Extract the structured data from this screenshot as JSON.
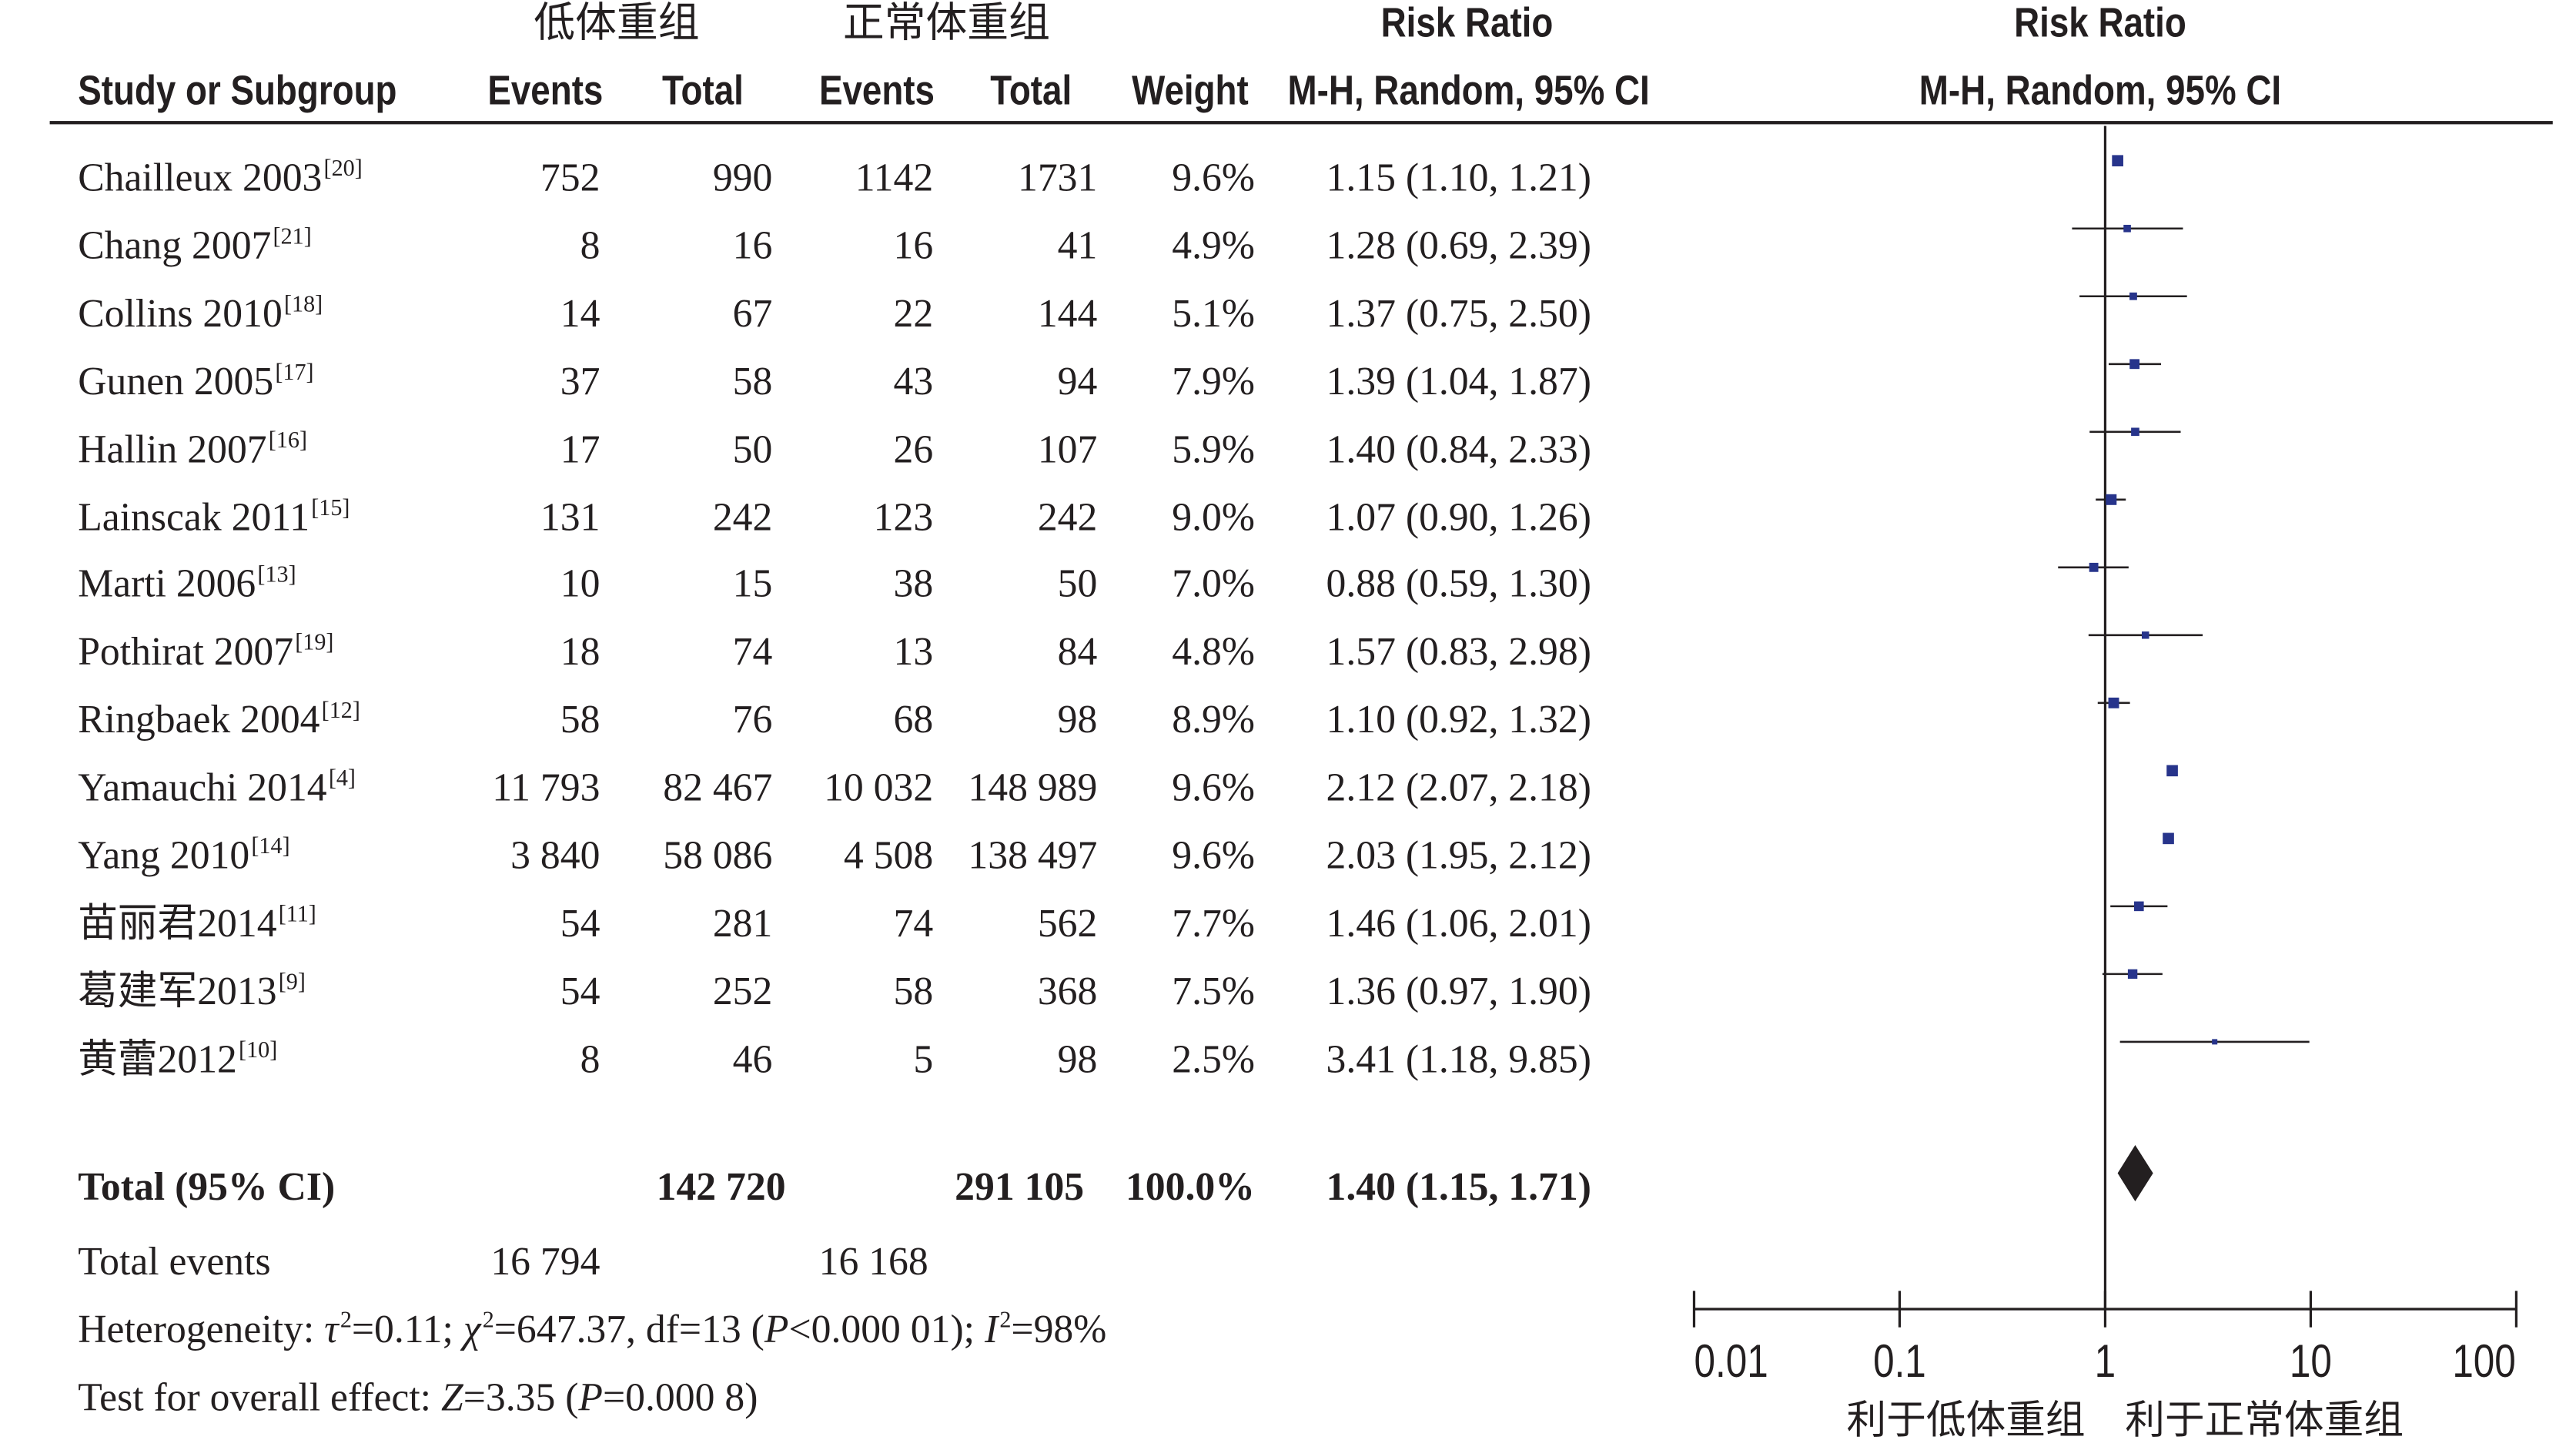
{
  "header": {
    "group_1": "低体重组",
    "group_2": "正常体重组",
    "risk_ratio_table": "Risk Ratio",
    "risk_ratio_plot": "Risk Ratio",
    "study": "Study or Subgroup",
    "events_1": "Events",
    "total_1": "Total",
    "events_2": "Events",
    "total_2": "Total",
    "weight": "Weight",
    "method_table": "M-H, Random, 95% CI",
    "method_plot": "M-H, Random, 95% CI"
  },
  "chart_data": {
    "type": "scatter",
    "x_scale": "log",
    "xlim": [
      0.01,
      100
    ],
    "xticks": [
      "0.01",
      "0.1",
      "1",
      "10",
      "100"
    ],
    "reference_line": 1,
    "xlabel_left": "利于低体重组",
    "xlabel_right": "利于正常体重组",
    "marker_color": "#27348b",
    "studies": [
      {
        "study": "Chailleux 2003",
        "ref": "[20]",
        "events_1": "752",
        "total_1": "990",
        "events_2": "1142",
        "total_2": "1731",
        "weight": "9.6%",
        "ci_text": "1.15 (1.10, 1.21)",
        "rr": 1.15,
        "lo": 1.1,
        "hi": 1.21,
        "w": 9.6
      },
      {
        "study": "Chang 2007",
        "ref": "[21]",
        "events_1": "8",
        "total_1": "16",
        "events_2": "16",
        "total_2": "41",
        "weight": "4.9%",
        "ci_text": "1.28 (0.69, 2.39)",
        "rr": 1.28,
        "lo": 0.69,
        "hi": 2.39,
        "w": 4.9
      },
      {
        "study": "Collins 2010",
        "ref": "[18]",
        "events_1": "14",
        "total_1": "67",
        "events_2": "22",
        "total_2": "144",
        "weight": "5.1%",
        "ci_text": "1.37 (0.75, 2.50)",
        "rr": 1.37,
        "lo": 0.75,
        "hi": 2.5,
        "w": 5.1
      },
      {
        "study": "Gunen 2005",
        "ref": "[17]",
        "events_1": "37",
        "total_1": "58",
        "events_2": "43",
        "total_2": "94",
        "weight": "7.9%",
        "ci_text": "1.39 (1.04, 1.87)",
        "rr": 1.39,
        "lo": 1.04,
        "hi": 1.87,
        "w": 7.9
      },
      {
        "study": "Hallin 2007",
        "ref": "[16]",
        "events_1": "17",
        "total_1": "50",
        "events_2": "26",
        "total_2": "107",
        "weight": "5.9%",
        "ci_text": "1.40 (0.84, 2.33)",
        "rr": 1.4,
        "lo": 0.84,
        "hi": 2.33,
        "w": 5.9
      },
      {
        "study": "Lainscak 2011",
        "ref": "[15]",
        "events_1": "131",
        "total_1": "242",
        "events_2": "123",
        "total_2": "242",
        "weight": "9.0%",
        "ci_text": "1.07 (0.90, 1.26)",
        "rr": 1.07,
        "lo": 0.9,
        "hi": 1.26,
        "w": 9.0
      },
      {
        "study": "Marti 2006",
        "ref": "[13]",
        "events_1": "10",
        "total_1": "15",
        "events_2": "38",
        "total_2": "50",
        "weight": "7.0%",
        "ci_text": "0.88 (0.59, 1.30)",
        "rr": 0.88,
        "lo": 0.59,
        "hi": 1.3,
        "w": 7.0
      },
      {
        "study": "Pothirat 2007",
        "ref": "[19]",
        "events_1": "18",
        "total_1": "74",
        "events_2": "13",
        "total_2": "84",
        "weight": "4.8%",
        "ci_text": "1.57 (0.83, 2.98)",
        "rr": 1.57,
        "lo": 0.83,
        "hi": 2.98,
        "w": 4.8
      },
      {
        "study": "Ringbaek 2004",
        "ref": "[12]",
        "events_1": "58",
        "total_1": "76",
        "events_2": "68",
        "total_2": "98",
        "weight": "8.9%",
        "ci_text": "1.10 (0.92, 1.32)",
        "rr": 1.1,
        "lo": 0.92,
        "hi": 1.32,
        "w": 8.9
      },
      {
        "study": "Yamauchi 2014",
        "ref": "[4]",
        "events_1": "11 793",
        "total_1": "82 467",
        "events_2": "10 032",
        "total_2": "148 989",
        "weight": "9.6%",
        "ci_text": "2.12 (2.07, 2.18)",
        "rr": 2.12,
        "lo": 2.07,
        "hi": 2.18,
        "w": 9.6
      },
      {
        "study": "Yang 2010",
        "ref": "[14]",
        "events_1": "3 840",
        "total_1": "58 086",
        "events_2": "4 508",
        "total_2": "138 497",
        "weight": "9.6%",
        "ci_text": "2.03 (1.95, 2.12)",
        "rr": 2.03,
        "lo": 1.95,
        "hi": 2.12,
        "w": 9.6
      },
      {
        "study": "苗丽君2014",
        "ref": "[11]",
        "events_1": "54",
        "total_1": "281",
        "events_2": "74",
        "total_2": "562",
        "weight": "7.7%",
        "ci_text": "1.46 (1.06, 2.01)",
        "rr": 1.46,
        "lo": 1.06,
        "hi": 2.01,
        "w": 7.7
      },
      {
        "study": "葛建军2013",
        "ref": "[9]",
        "events_1": "54",
        "total_1": "252",
        "events_2": "58",
        "total_2": "368",
        "weight": "7.5%",
        "ci_text": "1.36 (0.97, 1.90)",
        "rr": 1.36,
        "lo": 0.97,
        "hi": 1.9,
        "w": 7.5
      },
      {
        "study": "黄蕾2012",
        "ref": "[10]",
        "events_1": "8",
        "total_1": "46",
        "events_2": "5",
        "total_2": "98",
        "weight": "2.5%",
        "ci_text": "3.41 (1.18, 9.85)",
        "rr": 3.41,
        "lo": 1.18,
        "hi": 9.85,
        "w": 2.5
      }
    ],
    "total": {
      "label": "Total (95% CI)",
      "total_1": "142 720",
      "total_2": "291 105",
      "weight": "100.0%",
      "ci_text": "1.40 (1.15, 1.71)",
      "rr": 1.4,
      "lo": 1.15,
      "hi": 1.71
    },
    "total_events": {
      "label": "Total events",
      "events_1": "16 794",
      "events_2": "16 168"
    },
    "heterogeneity": [
      {
        "t": "Heterogeneity: "
      },
      {
        "t": "τ",
        "italic": true
      },
      {
        "t": "2",
        "sup": true
      },
      {
        "t": "=0.11; "
      },
      {
        "t": "χ",
        "italic": true
      },
      {
        "t": "2",
        "sup": true
      },
      {
        "t": "=647.37, df=13 ("
      },
      {
        "t": "P",
        "italic": true
      },
      {
        "t": "<0.000 01); "
      },
      {
        "t": "I",
        "italic": true
      },
      {
        "t": "2",
        "sup": true
      },
      {
        "t": "=98%"
      }
    ],
    "overall_effect": [
      {
        "t": "Test for overall effect: "
      },
      {
        "t": "Z",
        "italic": true
      },
      {
        "t": "=3.35 ("
      },
      {
        "t": "P",
        "italic": true
      },
      {
        "t": "=0.000 8)"
      }
    ]
  }
}
